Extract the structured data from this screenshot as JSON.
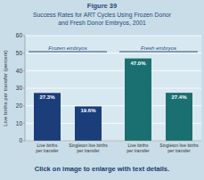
{
  "chart_data": {
    "type": "bar",
    "title": "Figure 39",
    "subtitle": [
      "Success Rates for ART Cycles Using Frozen Donor",
      "and Fresh Donor Embryos, 2001"
    ],
    "categories": [
      "Live births\nper transfer",
      "Singleton live births\nper transfer",
      "Live births\nper transfer",
      "Singleton live births\nper transfer"
    ],
    "values": [
      27.3,
      19.6,
      47.0,
      27.4
    ],
    "value_labels": [
      "27.3%",
      "19.6%",
      "47.0%",
      "27.4%"
    ],
    "colors": [
      "#1b3d7a",
      "#1b3d7a",
      "#1a7070",
      "#1a7070"
    ],
    "ylabel": "Live births per transfer (percent)",
    "ylim": [
      0,
      60
    ],
    "yticks": [
      0,
      10,
      20,
      30,
      40,
      50,
      60
    ],
    "grid": true,
    "data_labels": true,
    "annotations": [
      "Frozen embryos",
      "Fresh embryos",
      "Click on image to enlarge with text details."
    ]
  }
}
